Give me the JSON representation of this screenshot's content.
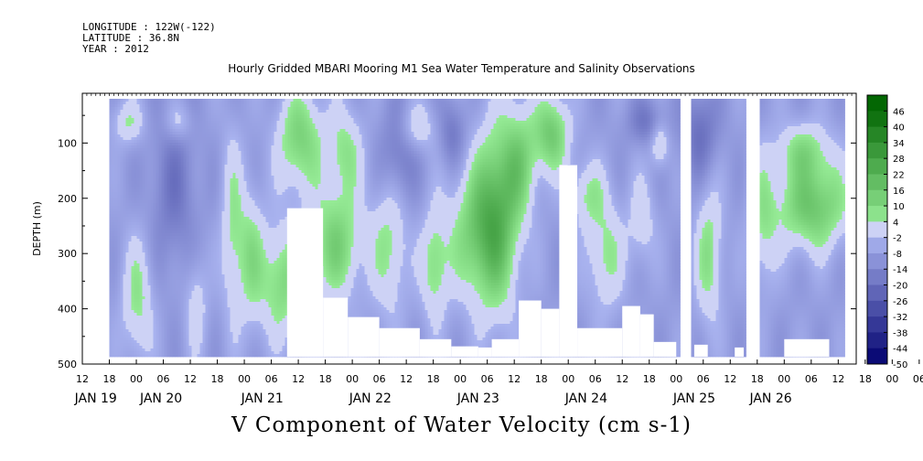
{
  "header": {
    "longitude": "LONGITUDE : 122W(-122)",
    "latitude": "LATITUDE : 36.8N",
    "year": "YEAR : 2012"
  },
  "chart_data": {
    "type": "heatmap",
    "title": "Hourly Gridded MBARI Mooring M1 Sea Water Temperature and Salinity Observations",
    "variable_title": "V Component of Water Velocity (cm s-1)",
    "ylabel": "DEPTH (m)",
    "xlabel": "",
    "ylim": [
      500,
      10
    ],
    "y_ticks": [
      100,
      200,
      300,
      400,
      500
    ],
    "x_range_hours": [
      0,
      172
    ],
    "x_hour_ticks": [
      "12",
      "18",
      "00",
      "06",
      "12",
      "18",
      "00",
      "06",
      "12",
      "18",
      "00",
      "06",
      "12",
      "18",
      "00",
      "06",
      "12",
      "18",
      "00",
      "06",
      "12",
      "18",
      "00",
      "06",
      "12",
      "18",
      "00",
      "06",
      "12",
      "18",
      "00",
      "06"
    ],
    "x_day_labels": [
      "JAN 19",
      "JAN 20",
      "JAN 21",
      "JAN 22",
      "JAN 23",
      "JAN 24",
      "JAN 25",
      "JAN 26"
    ],
    "colorbar_levels": [
      48,
      46,
      40,
      34,
      28,
      22,
      16,
      10,
      4,
      -2,
      -8,
      -14,
      -20,
      -26,
      -32,
      -38,
      -44,
      -50
    ],
    "colorbar_labels": [
      "46",
      "40",
      "34",
      "28",
      "22",
      "16",
      "10",
      "4",
      "-2",
      "-8",
      "-14",
      "-20",
      "-26",
      "-32",
      "-38",
      "-44",
      "-50"
    ],
    "data_start_hour": 6,
    "data_end_hour": 169,
    "data_gaps_hours": [
      [
        132.5,
        135
      ],
      [
        147.5,
        150
      ]
    ],
    "bottom_depth_limit": 485,
    "blank_regions": [
      {
        "h0": 45.5,
        "h1": 53.5,
        "depth_top": 218
      },
      {
        "h0": 53.5,
        "h1": 59,
        "depth_top": 380
      },
      {
        "h0": 59,
        "h1": 66,
        "depth_top": 415
      },
      {
        "h0": 66,
        "h1": 75,
        "depth_top": 435
      },
      {
        "h0": 75,
        "h1": 82,
        "depth_top": 455
      },
      {
        "h0": 82,
        "h1": 88,
        "depth_top": 468
      },
      {
        "h0": 88,
        "h1": 91,
        "depth_top": 470
      },
      {
        "h0": 91,
        "h1": 97,
        "depth_top": 455
      },
      {
        "h0": 97,
        "h1": 102,
        "depth_top": 385
      },
      {
        "h0": 102,
        "h1": 106,
        "depth_top": 400
      },
      {
        "h0": 106,
        "h1": 110,
        "depth_top": 140
      },
      {
        "h0": 110,
        "h1": 120,
        "depth_top": 435
      },
      {
        "h0": 120,
        "h1": 124,
        "depth_top": 395
      },
      {
        "h0": 124,
        "h1": 127,
        "depth_top": 410
      },
      {
        "h0": 127,
        "h1": 132,
        "depth_top": 460
      },
      {
        "h0": 136,
        "h1": 139,
        "depth_top": 465
      },
      {
        "h0": 145,
        "h1": 147,
        "depth_top": 470
      },
      {
        "h0": 156,
        "h1": 166,
        "depth_top": 455
      }
    ],
    "blobs": [
      {
        "h": 10,
        "d": 60,
        "rh": 3.5,
        "rd": 40,
        "v": 8
      },
      {
        "h": 21,
        "d": 60,
        "rh": 3,
        "rd": 35,
        "v": 6
      },
      {
        "h": 12,
        "d": 380,
        "rh": 3.5,
        "rd": 110,
        "v": 10
      },
      {
        "h": 25,
        "d": 390,
        "rh": 2.5,
        "rd": 90,
        "v": 6
      },
      {
        "h": 33,
        "d": 250,
        "rh": 2.5,
        "rd": 170,
        "v": 8
      },
      {
        "h": 37,
        "d": 300,
        "rh": 3,
        "rd": 120,
        "v": 10
      },
      {
        "h": 44,
        "d": 350,
        "rh": 5,
        "rd": 100,
        "v": 14
      },
      {
        "h": 48,
        "d": 90,
        "rh": 5,
        "rd": 90,
        "v": 16
      },
      {
        "h": 56,
        "d": 280,
        "rh": 6,
        "rd": 100,
        "v": 16
      },
      {
        "h": 58,
        "d": 110,
        "rh": 4,
        "rd": 80,
        "v": 10
      },
      {
        "h": 68,
        "d": 280,
        "rh": 4,
        "rd": 130,
        "v": 10
      },
      {
        "h": 74,
        "d": 70,
        "rh": 4,
        "rd": 45,
        "v": 8
      },
      {
        "h": 78,
        "d": 320,
        "rh": 3,
        "rd": 100,
        "v": 12
      },
      {
        "h": 87,
        "d": 260,
        "rh": 6,
        "rd": 120,
        "v": 14
      },
      {
        "h": 92,
        "d": 230,
        "rh": 5,
        "rd": 170,
        "v": 20
      },
      {
        "h": 97,
        "d": 130,
        "rh": 4,
        "rd": 100,
        "v": 12
      },
      {
        "h": 104,
        "d": 80,
        "rh": 4,
        "rd": 70,
        "v": 18
      },
      {
        "h": 112,
        "d": 190,
        "rh": 4,
        "rd": 60,
        "v": 8
      },
      {
        "h": 116,
        "d": 300,
        "rh": 4,
        "rd": 100,
        "v": 10
      },
      {
        "h": 124,
        "d": 240,
        "rh": 3,
        "rd": 80,
        "v": 6
      },
      {
        "h": 128,
        "d": 100,
        "rh": 2,
        "rd": 40,
        "v": 10
      },
      {
        "h": 139,
        "d": 300,
        "rh": 3,
        "rd": 120,
        "v": 12
      },
      {
        "h": 151,
        "d": 240,
        "rh": 3,
        "rd": 120,
        "v": 8
      },
      {
        "h": 162,
        "d": 210,
        "rh": 8,
        "rd": 80,
        "v": 20
      },
      {
        "h": 160,
        "d": 110,
        "rh": 6,
        "rd": 50,
        "v": 10
      }
    ],
    "blue_blobs": [
      {
        "h": 20,
        "d": 180,
        "rh": 5,
        "rd": 140,
        "v": -10
      },
      {
        "h": 70,
        "d": 120,
        "rh": 4,
        "rd": 90,
        "v": -12
      },
      {
        "h": 82,
        "d": 80,
        "rh": 3,
        "rd": 60,
        "v": -10
      },
      {
        "h": 125,
        "d": 60,
        "rh": 4,
        "rd": 40,
        "v": -10
      },
      {
        "h": 137,
        "d": 80,
        "rh": 4,
        "rd": 80,
        "v": -12
      }
    ]
  }
}
